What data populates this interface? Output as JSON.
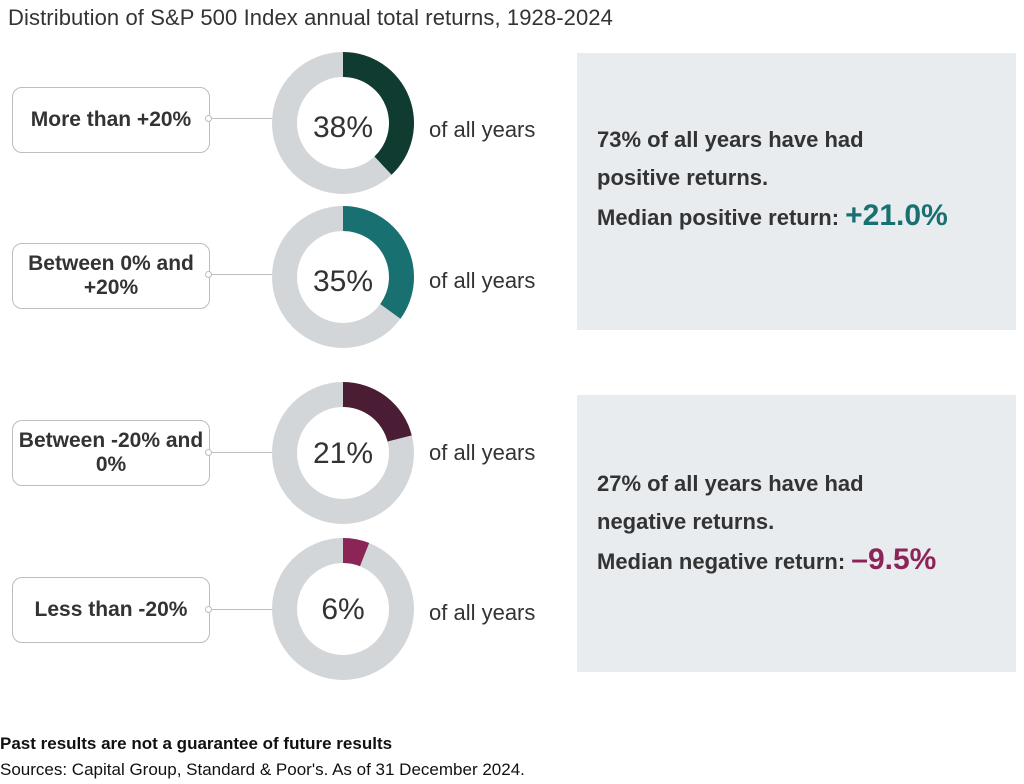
{
  "chart_data": {
    "type": "pie",
    "title": "Distribution of S&P 500 Index annual total returns, 1928-2024",
    "categories": [
      "More than +20%",
      "Between 0% and +20%",
      "Between -20% and 0%",
      "Less than -20%"
    ],
    "values": [
      38,
      35,
      21,
      6
    ],
    "value_labels": [
      "38%",
      "35%",
      "21%",
      "6%"
    ],
    "suffix_label": "of all years",
    "colors": [
      "#0f3b30",
      "#187170",
      "#4a1d35",
      "#8b2457"
    ],
    "track_color": "#d3d6d8",
    "summaries": [
      {
        "line1": "73% of all years have had",
        "line2": "positive returns.",
        "median_label": "Median positive return: ",
        "median_value": "+21.0%",
        "median_color": "#187170"
      },
      {
        "line1": "27% of all years have had",
        "line2": "negative returns.",
        "median_label": "Median negative return: ",
        "median_value": "–9.5%",
        "median_color": "#8b2457"
      }
    ]
  },
  "footnote": {
    "disclaimer": "Past results are not a guarantee of future results",
    "sources": "Sources: Capital Group, Standard & Poor's. As of 31 December 2024."
  }
}
